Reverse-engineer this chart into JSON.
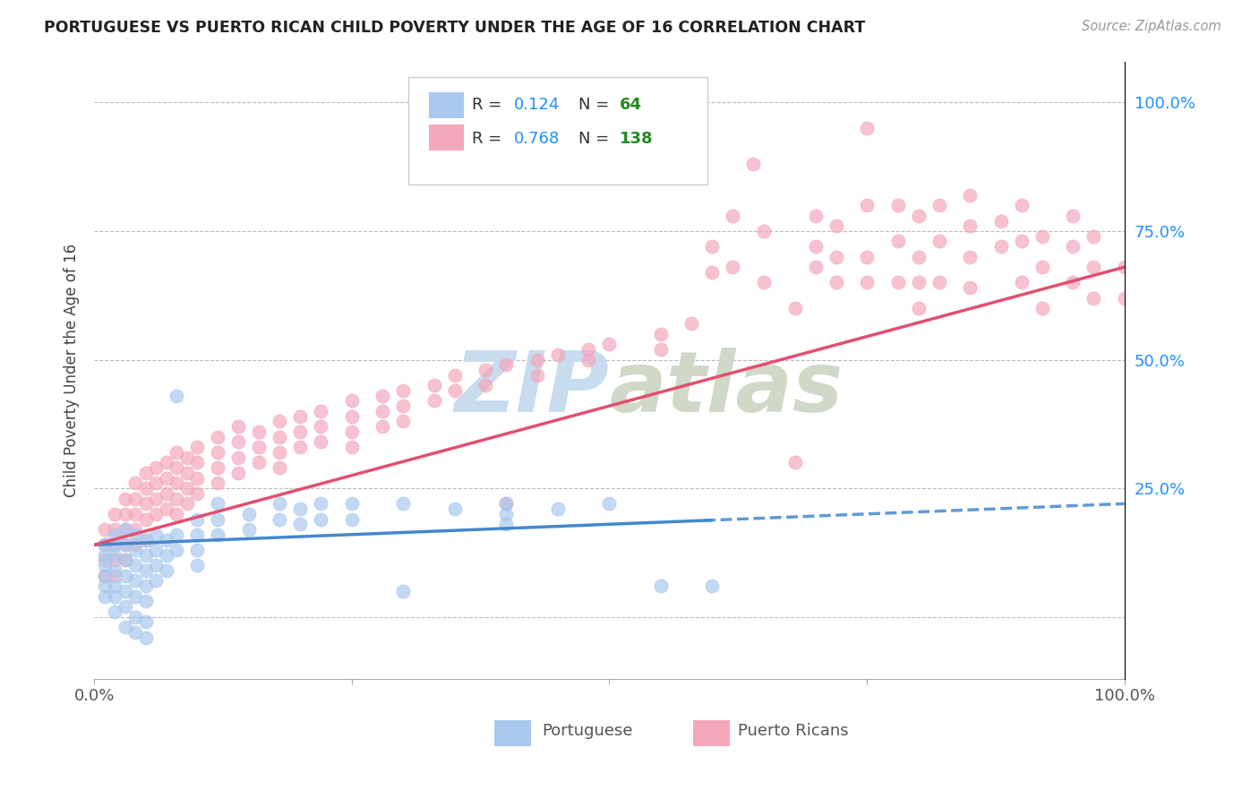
{
  "title": "PORTUGUESE VS PUERTO RICAN CHILD POVERTY UNDER THE AGE OF 16 CORRELATION CHART",
  "source": "Source: ZipAtlas.com",
  "ylabel": "Child Poverty Under the Age of 16",
  "xlim": [
    0.0,
    1.0
  ],
  "ylim": [
    -0.12,
    1.08
  ],
  "yticks": [
    0.0,
    0.25,
    0.5,
    0.75,
    1.0
  ],
  "ytick_labels_right": [
    "",
    "25.0%",
    "50.0%",
    "75.0%",
    "100.0%"
  ],
  "portuguese_color": "#A8C8EE",
  "puerto_rican_color": "#F4A8BC",
  "portuguese_R": 0.124,
  "portuguese_N": 64,
  "puerto_rican_R": 0.768,
  "puerto_rican_N": 138,
  "legend_R_color": "#1E90FF",
  "legend_N_color": "#228B22",
  "portuguese_trend_color": "#4488CC",
  "puerto_rican_trend_color": "#E05070",
  "watermark_color": "#C8DCF0",
  "portuguese_scatter": [
    [
      0.01,
      0.14
    ],
    [
      0.01,
      0.12
    ],
    [
      0.01,
      0.1
    ],
    [
      0.01,
      0.08
    ],
    [
      0.01,
      0.06
    ],
    [
      0.01,
      0.04
    ],
    [
      0.02,
      0.16
    ],
    [
      0.02,
      0.14
    ],
    [
      0.02,
      0.12
    ],
    [
      0.02,
      0.09
    ],
    [
      0.02,
      0.06
    ],
    [
      0.02,
      0.04
    ],
    [
      0.02,
      0.01
    ],
    [
      0.03,
      0.17
    ],
    [
      0.03,
      0.14
    ],
    [
      0.03,
      0.11
    ],
    [
      0.03,
      0.08
    ],
    [
      0.03,
      0.05
    ],
    [
      0.03,
      0.02
    ],
    [
      0.03,
      -0.02
    ],
    [
      0.04,
      0.16
    ],
    [
      0.04,
      0.13
    ],
    [
      0.04,
      0.1
    ],
    [
      0.04,
      0.07
    ],
    [
      0.04,
      0.04
    ],
    [
      0.04,
      0.0
    ],
    [
      0.04,
      -0.03
    ],
    [
      0.05,
      0.15
    ],
    [
      0.05,
      0.12
    ],
    [
      0.05,
      0.09
    ],
    [
      0.05,
      0.06
    ],
    [
      0.05,
      0.03
    ],
    [
      0.05,
      -0.01
    ],
    [
      0.05,
      -0.04
    ],
    [
      0.06,
      0.16
    ],
    [
      0.06,
      0.13
    ],
    [
      0.06,
      0.1
    ],
    [
      0.06,
      0.07
    ],
    [
      0.07,
      0.15
    ],
    [
      0.07,
      0.12
    ],
    [
      0.07,
      0.09
    ],
    [
      0.08,
      0.43
    ],
    [
      0.08,
      0.16
    ],
    [
      0.08,
      0.13
    ],
    [
      0.1,
      0.19
    ],
    [
      0.1,
      0.16
    ],
    [
      0.1,
      0.13
    ],
    [
      0.1,
      0.1
    ],
    [
      0.12,
      0.22
    ],
    [
      0.12,
      0.19
    ],
    [
      0.12,
      0.16
    ],
    [
      0.15,
      0.2
    ],
    [
      0.15,
      0.17
    ],
    [
      0.18,
      0.22
    ],
    [
      0.18,
      0.19
    ],
    [
      0.2,
      0.21
    ],
    [
      0.2,
      0.18
    ],
    [
      0.22,
      0.22
    ],
    [
      0.22,
      0.19
    ],
    [
      0.25,
      0.22
    ],
    [
      0.25,
      0.19
    ],
    [
      0.3,
      0.22
    ],
    [
      0.3,
      0.05
    ],
    [
      0.35,
      0.21
    ],
    [
      0.4,
      0.22
    ],
    [
      0.4,
      0.2
    ],
    [
      0.4,
      0.18
    ],
    [
      0.45,
      0.21
    ],
    [
      0.5,
      0.22
    ],
    [
      0.55,
      0.06
    ],
    [
      0.6,
      0.06
    ]
  ],
  "puerto_rican_scatter": [
    [
      0.01,
      0.17
    ],
    [
      0.01,
      0.14
    ],
    [
      0.01,
      0.11
    ],
    [
      0.01,
      0.08
    ],
    [
      0.02,
      0.2
    ],
    [
      0.02,
      0.17
    ],
    [
      0.02,
      0.14
    ],
    [
      0.02,
      0.11
    ],
    [
      0.02,
      0.08
    ],
    [
      0.03,
      0.23
    ],
    [
      0.03,
      0.2
    ],
    [
      0.03,
      0.17
    ],
    [
      0.03,
      0.14
    ],
    [
      0.03,
      0.11
    ],
    [
      0.04,
      0.26
    ],
    [
      0.04,
      0.23
    ],
    [
      0.04,
      0.2
    ],
    [
      0.04,
      0.17
    ],
    [
      0.04,
      0.14
    ],
    [
      0.05,
      0.28
    ],
    [
      0.05,
      0.25
    ],
    [
      0.05,
      0.22
    ],
    [
      0.05,
      0.19
    ],
    [
      0.05,
      0.15
    ],
    [
      0.06,
      0.29
    ],
    [
      0.06,
      0.26
    ],
    [
      0.06,
      0.23
    ],
    [
      0.06,
      0.2
    ],
    [
      0.07,
      0.3
    ],
    [
      0.07,
      0.27
    ],
    [
      0.07,
      0.24
    ],
    [
      0.07,
      0.21
    ],
    [
      0.08,
      0.32
    ],
    [
      0.08,
      0.29
    ],
    [
      0.08,
      0.26
    ],
    [
      0.08,
      0.23
    ],
    [
      0.08,
      0.2
    ],
    [
      0.09,
      0.31
    ],
    [
      0.09,
      0.28
    ],
    [
      0.09,
      0.25
    ],
    [
      0.09,
      0.22
    ],
    [
      0.1,
      0.33
    ],
    [
      0.1,
      0.3
    ],
    [
      0.1,
      0.27
    ],
    [
      0.1,
      0.24
    ],
    [
      0.12,
      0.35
    ],
    [
      0.12,
      0.32
    ],
    [
      0.12,
      0.29
    ],
    [
      0.12,
      0.26
    ],
    [
      0.14,
      0.37
    ],
    [
      0.14,
      0.34
    ],
    [
      0.14,
      0.31
    ],
    [
      0.14,
      0.28
    ],
    [
      0.16,
      0.36
    ],
    [
      0.16,
      0.33
    ],
    [
      0.16,
      0.3
    ],
    [
      0.18,
      0.38
    ],
    [
      0.18,
      0.35
    ],
    [
      0.18,
      0.32
    ],
    [
      0.18,
      0.29
    ],
    [
      0.2,
      0.39
    ],
    [
      0.2,
      0.36
    ],
    [
      0.2,
      0.33
    ],
    [
      0.22,
      0.4
    ],
    [
      0.22,
      0.37
    ],
    [
      0.22,
      0.34
    ],
    [
      0.25,
      0.42
    ],
    [
      0.25,
      0.39
    ],
    [
      0.25,
      0.36
    ],
    [
      0.25,
      0.33
    ],
    [
      0.28,
      0.43
    ],
    [
      0.28,
      0.4
    ],
    [
      0.28,
      0.37
    ],
    [
      0.3,
      0.44
    ],
    [
      0.3,
      0.41
    ],
    [
      0.3,
      0.38
    ],
    [
      0.33,
      0.45
    ],
    [
      0.33,
      0.42
    ],
    [
      0.35,
      0.47
    ],
    [
      0.35,
      0.44
    ],
    [
      0.38,
      0.48
    ],
    [
      0.38,
      0.45
    ],
    [
      0.4,
      0.49
    ],
    [
      0.4,
      0.22
    ],
    [
      0.43,
      0.5
    ],
    [
      0.43,
      0.47
    ],
    [
      0.45,
      0.51
    ],
    [
      0.48,
      0.52
    ],
    [
      0.48,
      0.5
    ],
    [
      0.5,
      0.53
    ],
    [
      0.55,
      0.55
    ],
    [
      0.55,
      0.52
    ],
    [
      0.58,
      0.57
    ],
    [
      0.6,
      0.67
    ],
    [
      0.6,
      0.72
    ],
    [
      0.62,
      0.78
    ],
    [
      0.62,
      0.68
    ],
    [
      0.64,
      0.88
    ],
    [
      0.65,
      0.75
    ],
    [
      0.65,
      0.65
    ],
    [
      0.68,
      0.3
    ],
    [
      0.68,
      0.6
    ],
    [
      0.7,
      0.78
    ],
    [
      0.7,
      0.72
    ],
    [
      0.7,
      0.68
    ],
    [
      0.72,
      0.76
    ],
    [
      0.72,
      0.7
    ],
    [
      0.72,
      0.65
    ],
    [
      0.75,
      0.95
    ],
    [
      0.75,
      0.8
    ],
    [
      0.75,
      0.7
    ],
    [
      0.75,
      0.65
    ],
    [
      0.78,
      0.8
    ],
    [
      0.78,
      0.73
    ],
    [
      0.78,
      0.65
    ],
    [
      0.8,
      0.78
    ],
    [
      0.8,
      0.7
    ],
    [
      0.8,
      0.65
    ],
    [
      0.8,
      0.6
    ],
    [
      0.82,
      0.8
    ],
    [
      0.82,
      0.73
    ],
    [
      0.82,
      0.65
    ],
    [
      0.85,
      0.82
    ],
    [
      0.85,
      0.76
    ],
    [
      0.85,
      0.7
    ],
    [
      0.85,
      0.64
    ],
    [
      0.88,
      0.77
    ],
    [
      0.88,
      0.72
    ],
    [
      0.9,
      0.8
    ],
    [
      0.9,
      0.73
    ],
    [
      0.9,
      0.65
    ],
    [
      0.92,
      0.74
    ],
    [
      0.92,
      0.68
    ],
    [
      0.92,
      0.6
    ],
    [
      0.95,
      0.78
    ],
    [
      0.95,
      0.72
    ],
    [
      0.95,
      0.65
    ],
    [
      0.97,
      0.74
    ],
    [
      0.97,
      0.68
    ],
    [
      0.97,
      0.62
    ],
    [
      1.0,
      0.68
    ],
    [
      1.0,
      0.62
    ]
  ]
}
